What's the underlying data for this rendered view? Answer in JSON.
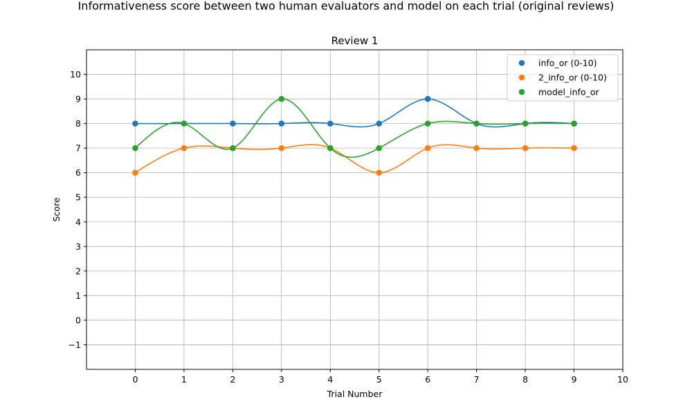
{
  "chart_data": {
    "type": "scatter",
    "suptitle": "Informativeness score between two human evaluators and model on each trial (original reviews)",
    "title": "Review 1",
    "xlabel": "Trial Number",
    "ylabel": "Score",
    "xlim": [
      -1,
      10
    ],
    "ylim": [
      -2,
      11
    ],
    "xticks": [
      0,
      1,
      2,
      3,
      4,
      5,
      6,
      7,
      8,
      9,
      10
    ],
    "yticks": [
      -1,
      0,
      1,
      2,
      3,
      4,
      5,
      6,
      7,
      8,
      9,
      10
    ],
    "grid": true,
    "legend_position": "top-right",
    "x": [
      0,
      1,
      2,
      3,
      4,
      5,
      6,
      7,
      8,
      9
    ],
    "series": [
      {
        "name": "info_or (0-10)",
        "color": "#1f77b4",
        "values": [
          8,
          8,
          8,
          8,
          8,
          8,
          9,
          8,
          8,
          8
        ]
      },
      {
        "name": "2_info_or (0-10)",
        "color": "#ff7f0e",
        "values": [
          6,
          7,
          7,
          7,
          7,
          6,
          7,
          7,
          7,
          7
        ]
      },
      {
        "name": "model_info_or",
        "color": "#2ca02c",
        "values": [
          7,
          8,
          7,
          9,
          7,
          7,
          8,
          8,
          8,
          8
        ]
      }
    ]
  }
}
